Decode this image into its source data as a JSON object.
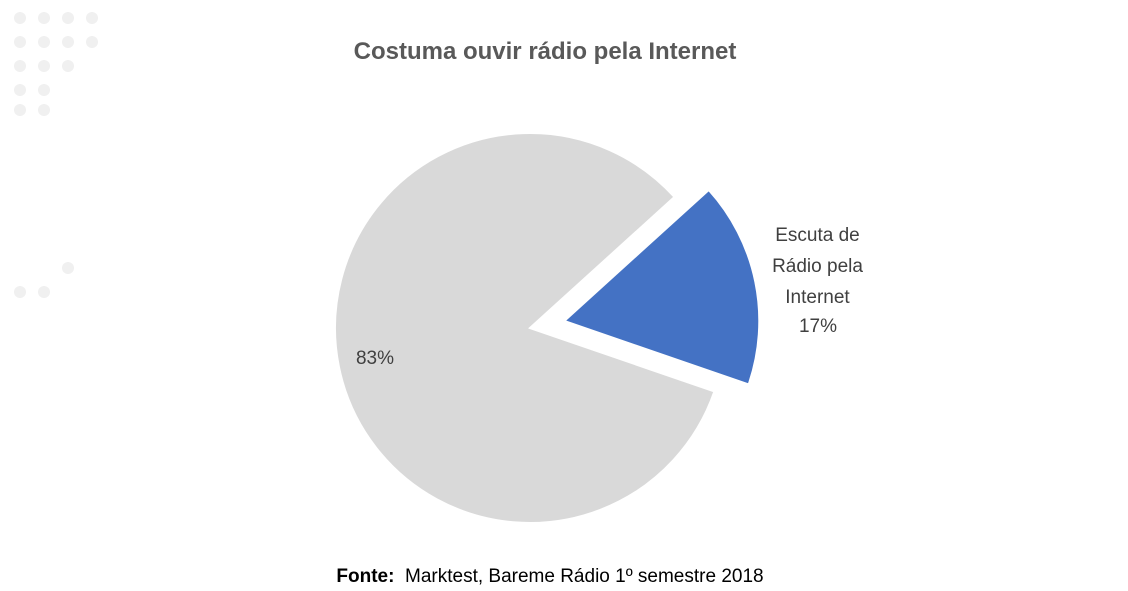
{
  "chart_data": {
    "type": "pie",
    "title": "Costuma ouvir rádio pela Internet",
    "categories": [
      null,
      "Escuta de Rádio pela Internet"
    ],
    "values": [
      83,
      17
    ],
    "value_labels": [
      "83%",
      "17%"
    ],
    "colors": [
      "#d9d9d9",
      "#4472c4"
    ],
    "source_label": "Fonte:",
    "source": "Marktest, Bareme Rádio 1º semestre 2018"
  }
}
